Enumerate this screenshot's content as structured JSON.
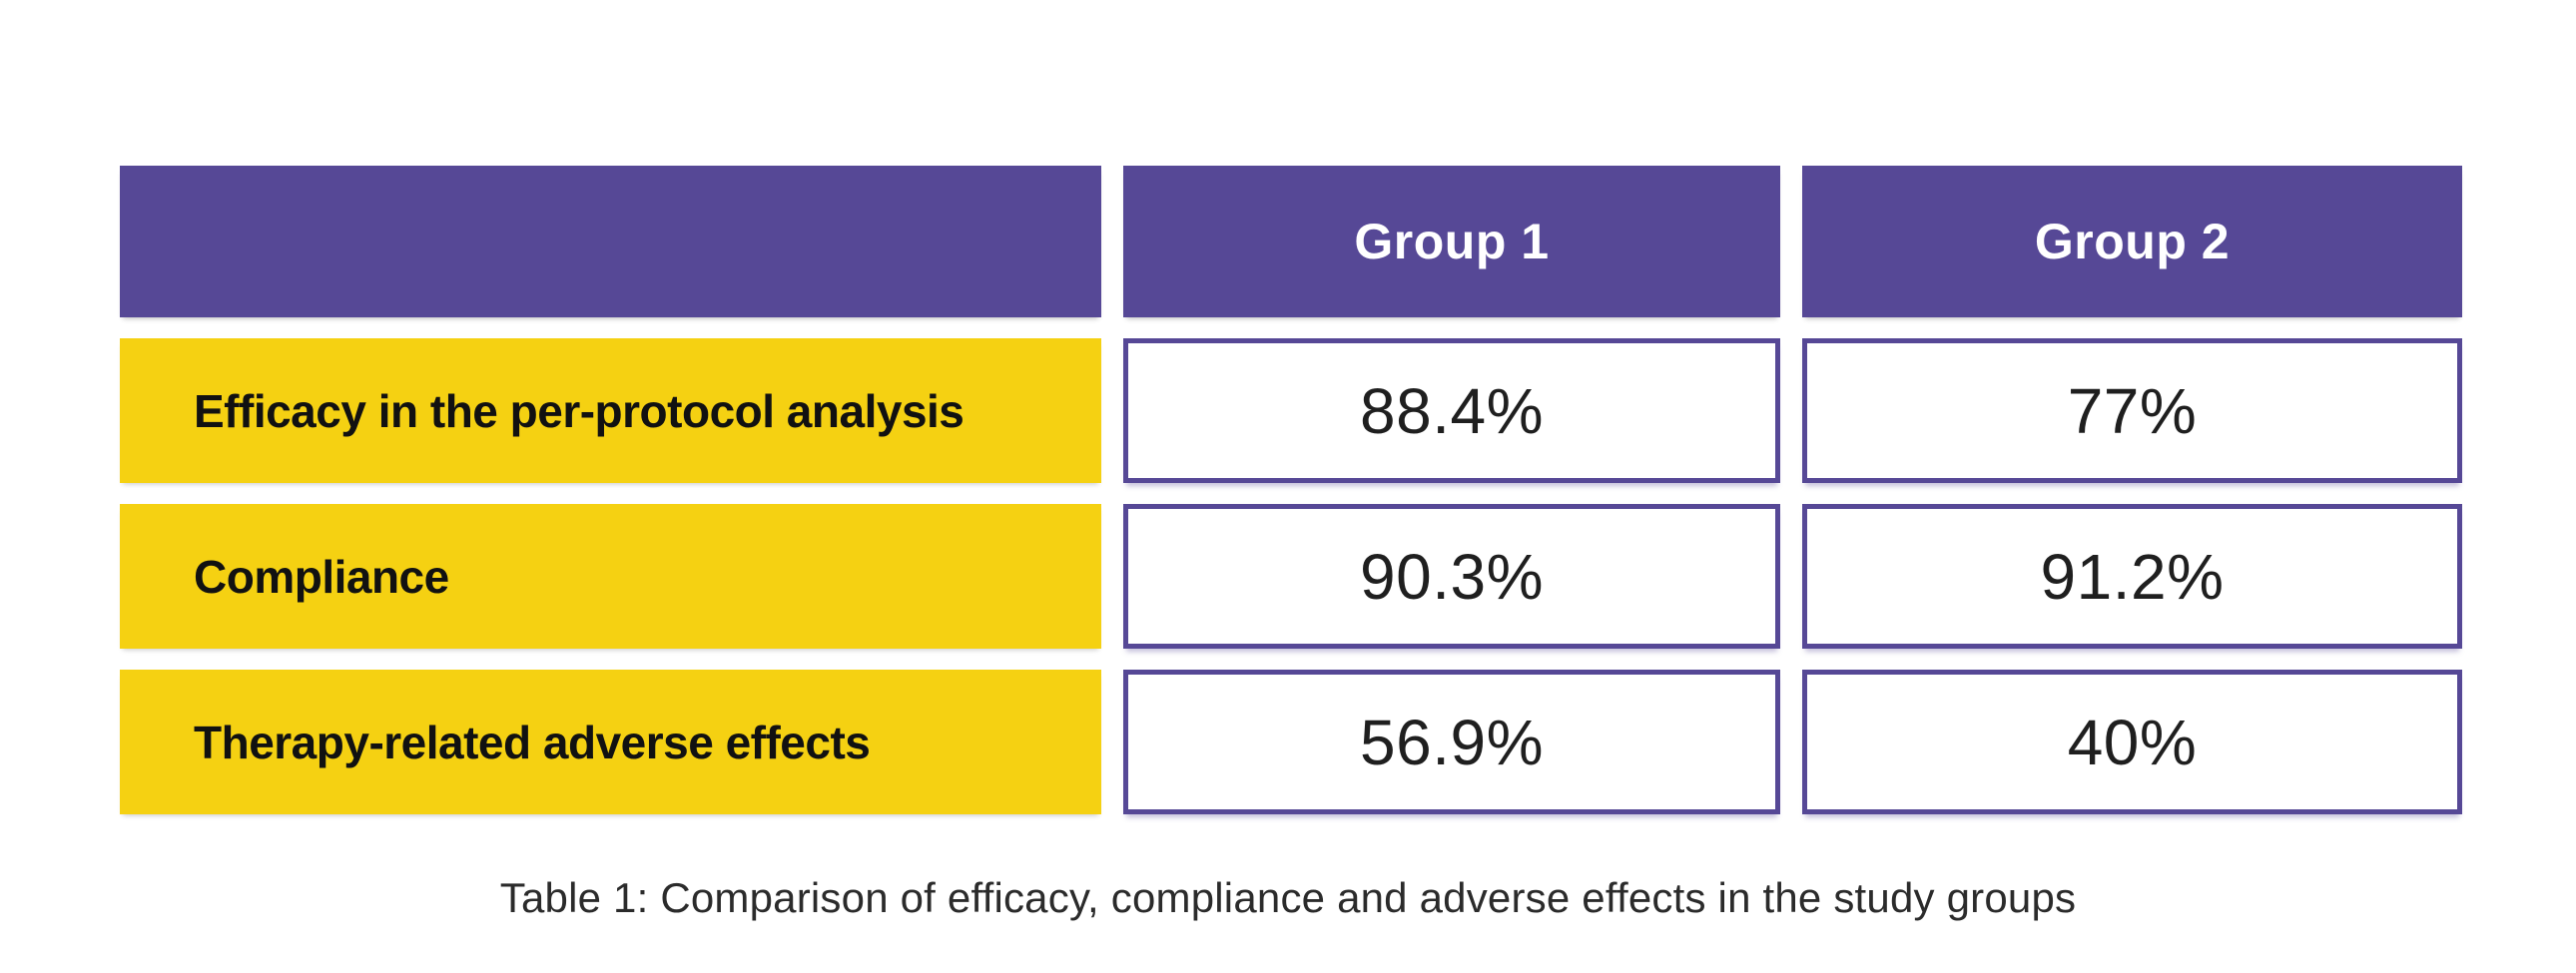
{
  "colors": {
    "page_bg": "#ffffff",
    "header_bg": "#564896",
    "header_text": "#ffffff",
    "label_bg": "#f5d112",
    "label_text": "#111111",
    "value_border": "#564896",
    "value_text": "#1f1f1f",
    "caption_text": "#2b2b2b"
  },
  "table": {
    "header": {
      "corner": "",
      "columns": [
        "Group 1",
        "Group 2"
      ]
    },
    "rows": [
      {
        "label": "Efficacy in the per-protocol analysis",
        "values": [
          "88.4%",
          "77%"
        ]
      },
      {
        "label": "Compliance",
        "values": [
          "90.3%",
          "91.2%"
        ]
      },
      {
        "label": "Therapy-related adverse effects",
        "values": [
          "56.9%",
          "40%"
        ]
      }
    ]
  },
  "caption": "Table 1: Comparison of efficacy, compliance and adverse effects in the study groups",
  "chart_data": {
    "type": "table",
    "title": "Table 1: Comparison of efficacy, compliance and adverse effects in the study groups",
    "columns": [
      "",
      "Group 1",
      "Group 2"
    ],
    "categories": [
      "Efficacy in the per-protocol analysis",
      "Compliance",
      "Therapy-related adverse effects"
    ],
    "series": [
      {
        "name": "Group 1",
        "values": [
          88.4,
          90.3,
          56.9
        ]
      },
      {
        "name": "Group 2",
        "values": [
          77,
          91.2,
          40
        ]
      }
    ],
    "unit": "%",
    "layout_hints": {
      "header_style": "purple-fill-white-text",
      "category_style": "yellow-fill-black-bold",
      "value_style": "white-fill-purple-border",
      "caption_position": "bottom-center"
    }
  }
}
